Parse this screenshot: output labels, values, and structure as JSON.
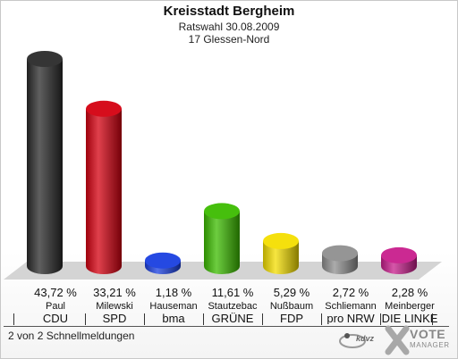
{
  "header": {
    "title": "Kreisstadt Bergheim",
    "subtitle1": "Ratswahl 30.08.2009",
    "subtitle2": "17 Glessen-Nord"
  },
  "footer": {
    "note": "2 von 2 Schnellmeldungen",
    "brand_vote": "VOTE",
    "brand_manager": "MANAGER",
    "brand_kdvz": "kdvz"
  },
  "chart_data": {
    "type": "bar",
    "title": "Kreisstadt Bergheim",
    "subtitle": "Ratswahl 30.08.2009 – 17 Glessen-Nord",
    "ylim": [
      0,
      46
    ],
    "grid": false,
    "categories": [
      "CDU",
      "SPD",
      "bma",
      "GRÜNE",
      "FDP",
      "pro NRW",
      "DIE LINKE"
    ],
    "candidates": [
      "Paul",
      "Milewski",
      "Hauseman",
      "Stautzebac",
      "Nußbaum",
      "Schliemann",
      "Meinberger"
    ],
    "values": [
      43.72,
      33.21,
      1.18,
      11.61,
      5.29,
      2.72,
      2.28
    ],
    "value_labels": [
      "43,72 %",
      "33,21 %",
      "1,18 %",
      "11,61 %",
      "5,29 %",
      "2,72 %",
      "2,28 %"
    ],
    "colors": [
      "#2a2a2a",
      "#d40010",
      "#1a3fe0",
      "#3cbc00",
      "#f4de00",
      "#8f8f8f",
      "#c81e8c"
    ]
  }
}
